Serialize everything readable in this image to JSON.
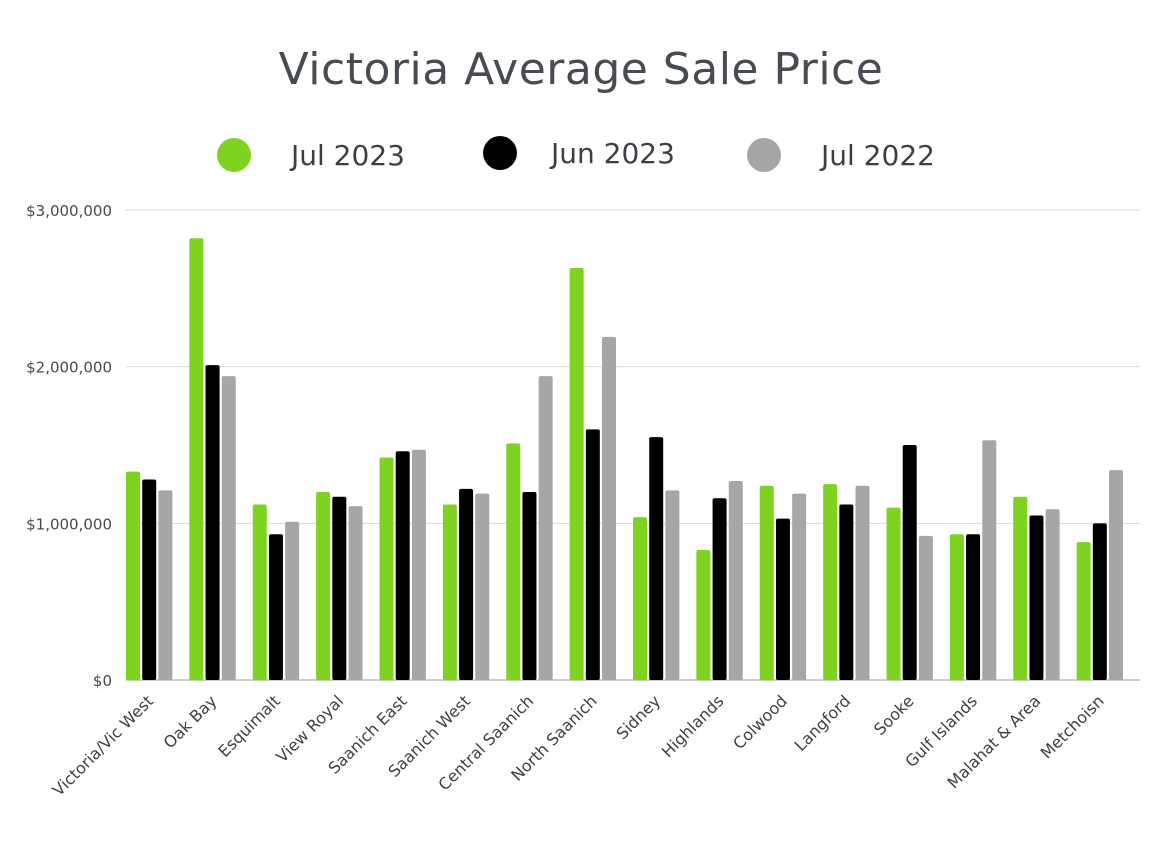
{
  "title": "Victoria Average Sale Price",
  "legend": [
    {
      "label": "Jul 2023",
      "color": "#7ed321"
    },
    {
      "label": "Jun 2023",
      "color": "#000000"
    },
    {
      "label": "Jul 2022",
      "color": "#a6a6a6"
    }
  ],
  "chart_data": {
    "type": "bar",
    "title": "Victoria Average Sale Price",
    "xlabel": "",
    "ylabel": "",
    "ylim": [
      0,
      3000000
    ],
    "yticks": [
      0,
      1000000,
      2000000,
      3000000
    ],
    "ytick_labels": [
      "$0",
      "$1,000,000",
      "$2,000,000",
      "$3,000,000"
    ],
    "grid": true,
    "legend_position": "top",
    "categories": [
      "Victoria/Vic West",
      "Oak Bay",
      "Esquimalt",
      "View Royal",
      "Saanich East",
      "Saanich West",
      "Central Saanich",
      "North Saanich",
      "Sidney",
      "Highlands",
      "Colwood",
      "Langford",
      "Sooke",
      "Gulf Islands",
      "Malahat & Area",
      "Metchoisn"
    ],
    "series": [
      {
        "name": "Jul 2023",
        "color": "#7ed321",
        "values": [
          1330000,
          2820000,
          1120000,
          1200000,
          1420000,
          1120000,
          1510000,
          2630000,
          1040000,
          830000,
          1240000,
          1250000,
          1100000,
          930000,
          1170000,
          880000
        ]
      },
      {
        "name": "Jun 2023",
        "color": "#000000",
        "values": [
          1280000,
          2010000,
          930000,
          1170000,
          1460000,
          1220000,
          1200000,
          1600000,
          1550000,
          1160000,
          1030000,
          1120000,
          1500000,
          930000,
          1050000,
          1000000
        ]
      },
      {
        "name": "Jul 2022",
        "color": "#a6a6a6",
        "values": [
          1210000,
          1940000,
          1010000,
          1110000,
          1470000,
          1190000,
          1940000,
          2190000,
          1210000,
          1270000,
          1190000,
          1240000,
          920000,
          1530000,
          1090000,
          1340000
        ]
      }
    ]
  }
}
